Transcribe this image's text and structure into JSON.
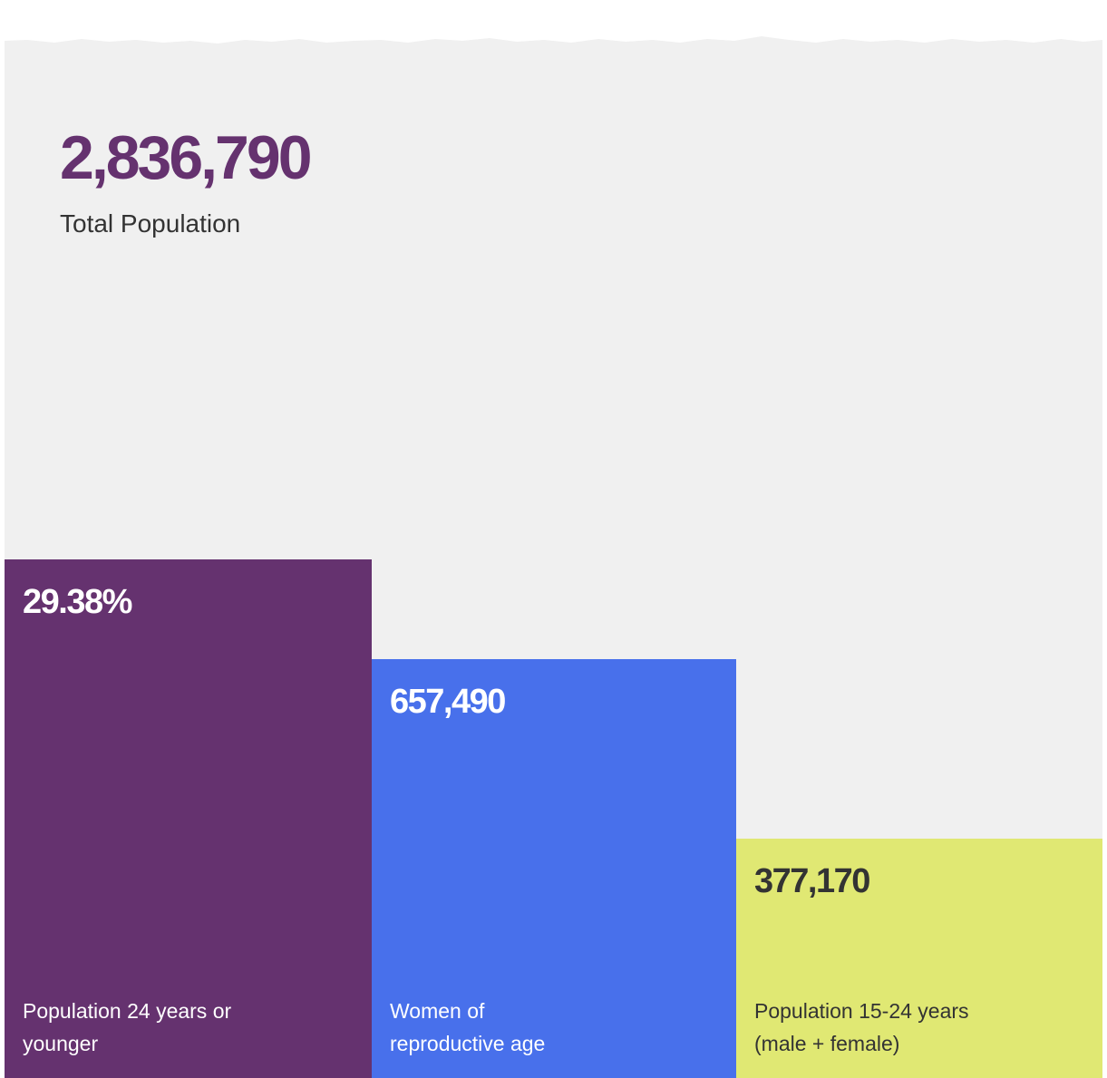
{
  "colors": {
    "background": "#f0f0f0",
    "purple": "#65326f",
    "blue": "#4870eb",
    "yellow": "#e0e873",
    "dark_text": "#333333"
  },
  "headline": {
    "value": "2,836,790",
    "label": "Total Population"
  },
  "chart_data": {
    "type": "bar",
    "categories": [
      "Population 24 years or younger",
      "Women of reproductive age",
      "Population 15-24 years (male + female)"
    ],
    "value_labels": [
      "29.38%",
      "657,490",
      "377,170"
    ],
    "relative_heights": [
      1.0,
      0.8,
      0.5
    ],
    "colors": [
      "#65326f",
      "#4870eb",
      "#e0e873"
    ]
  },
  "bars": [
    {
      "value": "29.38%",
      "label": "Population 24 years or younger"
    },
    {
      "value": "657,490",
      "label": "Women of reproductive age"
    },
    {
      "value": "377,170",
      "label": "Population 15-24 years (male + female)"
    }
  ]
}
